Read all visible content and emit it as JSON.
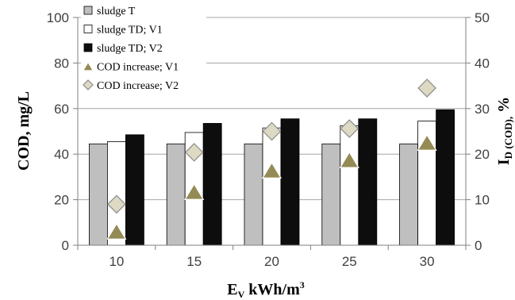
{
  "chart_data": {
    "type": "bar",
    "categories": [
      "10",
      "15",
      "20",
      "25",
      "30"
    ],
    "xlabel": {
      "main": "E",
      "sub": "V",
      "rest": " kWh/m",
      "sup": "3"
    },
    "ylabel": "COD, mg/L",
    "y2label": {
      "main": "I",
      "sub": "D (COD),",
      "rest": " %"
    },
    "ylim": [
      0,
      100
    ],
    "y2lim": [
      0,
      50
    ],
    "yticks": [
      "0",
      "20",
      "40",
      "60",
      "80",
      "100"
    ],
    "y2ticks": [
      "0",
      "10",
      "20",
      "30",
      "40",
      "50"
    ],
    "grid": true,
    "legend_position": "top-left",
    "series": [
      {
        "name": "sludge T",
        "type": "bar",
        "axis": "left",
        "color": "#bfbfbf",
        "values": [
          44.5,
          44.5,
          44.5,
          44.5,
          44.5
        ]
      },
      {
        "name": "sludge TD; V1",
        "type": "bar",
        "axis": "left",
        "color": "#ffffff",
        "values": [
          45.5,
          49.5,
          51.5,
          52.5,
          54.5
        ]
      },
      {
        "name": "sludge TD; V2",
        "type": "bar",
        "axis": "left",
        "color": "#0d0d0d",
        "values": [
          48.5,
          53.5,
          55.5,
          55.5,
          59.5
        ]
      },
      {
        "name": "COD increase; V1",
        "type": "scatter",
        "marker": "triangle",
        "axis": "right",
        "color": "#948a54",
        "values": [
          2.8,
          11.5,
          16.2,
          18.5,
          22.3
        ]
      },
      {
        "name": "COD increase; V2",
        "type": "scatter",
        "marker": "diamond",
        "axis": "right",
        "color": "#ddd9c3",
        "values": [
          9.0,
          20.4,
          25.0,
          25.6,
          34.5
        ]
      }
    ]
  }
}
